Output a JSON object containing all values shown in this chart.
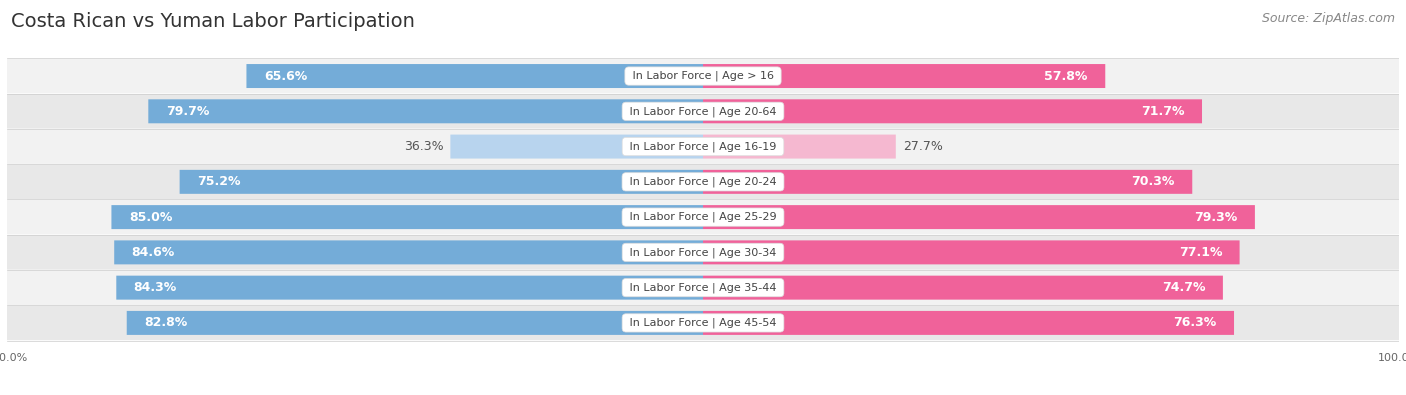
{
  "title": "Costa Rican vs Yuman Labor Participation",
  "source": "Source: ZipAtlas.com",
  "categories": [
    "In Labor Force | Age > 16",
    "In Labor Force | Age 20-64",
    "In Labor Force | Age 16-19",
    "In Labor Force | Age 20-24",
    "In Labor Force | Age 25-29",
    "In Labor Force | Age 30-34",
    "In Labor Force | Age 35-44",
    "In Labor Force | Age 45-54"
  ],
  "costa_rican": [
    65.6,
    79.7,
    36.3,
    75.2,
    85.0,
    84.6,
    84.3,
    82.8
  ],
  "yuman": [
    57.8,
    71.7,
    27.7,
    70.3,
    79.3,
    77.1,
    74.7,
    76.3
  ],
  "costa_rican_color": "#74acd8",
  "costa_rican_color_light": "#b8d4ee",
  "yuman_color": "#f0629a",
  "yuman_color_light": "#f5b8d0",
  "row_bg_even": "#f2f2f2",
  "row_bg_odd": "#e8e8e8",
  "title_fontsize": 14,
  "source_fontsize": 9,
  "bar_label_fontsize": 9,
  "category_fontsize": 8,
  "legend_fontsize": 9,
  "axis_label_fontsize": 8,
  "max_value": 100.0,
  "light_threshold": 50
}
